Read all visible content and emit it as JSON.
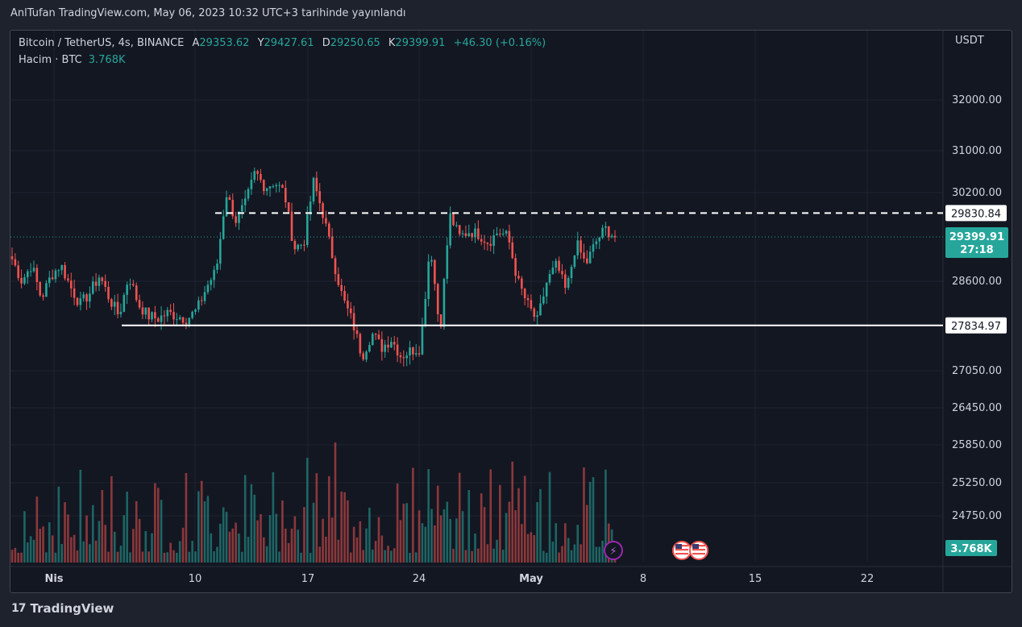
{
  "published": "AnlTufan TradingView.com, May 06, 2023 10:32 UTC+3 tarihinde yayınlandı",
  "brand": {
    "logo": "17",
    "name": "TradingView"
  },
  "legend": {
    "symbol": "Bitcoin / TetherUS, 4s, BINANCE",
    "open_label": "A",
    "open": "29353.62",
    "high_label": "Y",
    "high": "29427.61",
    "low_label": "D",
    "low": "29250.65",
    "close_label": "K",
    "close": "29399.91",
    "change": "+46.30 (+0.16%)",
    "volume_label": "Hacim · BTC",
    "volume": "3.768K"
  },
  "chart_data": {
    "type": "candlestick",
    "y_unit": "USDT",
    "y_ticks": [
      "32000.00",
      "31000.00",
      "30200.00",
      "28600.00",
      "27050.00",
      "26450.00",
      "25850.00",
      "25250.00",
      "24750.00"
    ],
    "x_ticks": [
      "Nis",
      "10",
      "17",
      "24",
      "May",
      "8",
      "15",
      "22"
    ],
    "horizontal_lines": [
      {
        "value": 29830.84,
        "label": "29830.84",
        "style": "dashed",
        "color": "#ffffff"
      },
      {
        "value": 27834.97,
        "label": "27834.97",
        "style": "solid",
        "color": "#ffffff"
      }
    ],
    "last_price": {
      "value": 29399.91,
      "label": "29399.91",
      "countdown": "27:18",
      "color": "#26a69a"
    },
    "last_volume": {
      "label": "3.768K",
      "color": "#26a69a"
    },
    "ylim": [
      24350,
      33000
    ],
    "colors": {
      "up": "#26a69a",
      "down": "#ef5350"
    },
    "series_anchors": [
      29000,
      28600,
      28900,
      28300,
      28700,
      28900,
      28500,
      28200,
      28400,
      28700,
      28300,
      28000,
      28700,
      28200,
      28000,
      27950,
      28050,
      28000,
      27950,
      28100,
      28500,
      28800,
      30200,
      29700,
      30000,
      30600,
      30300,
      30400,
      30200,
      29200,
      29300,
      30400,
      29800,
      29000,
      28300,
      27900,
      27300,
      27700,
      27450,
      27600,
      27300,
      27400,
      27450,
      29300,
      27700,
      29800,
      29400,
      29500,
      29450,
      29300,
      29500,
      29400,
      28600,
      28200,
      27900,
      28600,
      28900,
      28400,
      29300,
      28900,
      29300,
      29550,
      29400
    ]
  },
  "events": {
    "flash": "⚡",
    "us_flags": [
      "US",
      "US"
    ]
  }
}
